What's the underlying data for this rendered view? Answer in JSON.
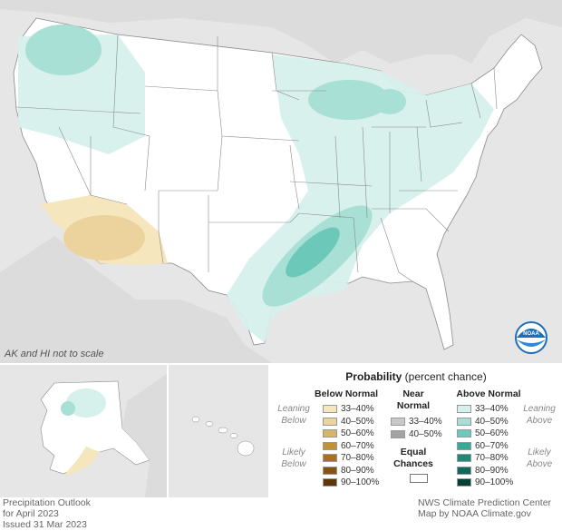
{
  "note": "AK and HI not to scale",
  "legend": {
    "title_bold": "Probability",
    "title_rest": " (percent chance)",
    "below_header": "Below Normal",
    "near_header_1": "Near",
    "near_header_2": "Normal",
    "above_header": "Above Normal",
    "leaning_1": "Leaning",
    "below_word": "Below",
    "likely_1": "Likely",
    "above_word": "Above",
    "equal_1": "Equal",
    "equal_2": "Chances",
    "below_rows": [
      {
        "label": "33–40%",
        "color": "#f6e6bd"
      },
      {
        "label": "40–50%",
        "color": "#ecd39e"
      },
      {
        "label": "50–60%",
        "color": "#d8b46c"
      },
      {
        "label": "60–70%",
        "color": "#c29037"
      },
      {
        "label": "70–80%",
        "color": "#a8701f"
      },
      {
        "label": "80–90%",
        "color": "#875414"
      },
      {
        "label": "90–100%",
        "color": "#5e3708"
      }
    ],
    "near_rows": [
      {
        "label": "33–40%",
        "color": "#c8c8c8"
      },
      {
        "label": "40–50%",
        "color": "#a3a3a3"
      }
    ],
    "above_rows": [
      {
        "label": "33–40%",
        "color": "#d6f0ec"
      },
      {
        "label": "40–50%",
        "color": "#a8e0d6"
      },
      {
        "label": "50–60%",
        "color": "#6cc8b8"
      },
      {
        "label": "60–70%",
        "color": "#3aa896"
      },
      {
        "label": "70–80%",
        "color": "#1f8a77"
      },
      {
        "label": "80–90%",
        "color": "#10695a"
      },
      {
        "label": "90–100%",
        "color": "#063f36"
      }
    ]
  },
  "footer": {
    "left_1": "Precipitation Outlook",
    "left_2": "for April 2023",
    "left_3": "Issued 31 Mar 2023",
    "right_1": "NWS Climate Prediction Center",
    "right_2": "Map by NOAA Climate.gov"
  },
  "logo_text": "NOAA",
  "colors": {
    "background_gray": "#e6e6e6",
    "land": "#ffffff",
    "state_lines": "#8a8a8a",
    "above_33_40": "#d6f0ec",
    "above_40_50": "#a8e0d6",
    "above_50_60": "#6cc8b8",
    "below_33_40": "#f6e6bd",
    "below_40_50": "#ecd39e",
    "noaa_blue": "#1d6fb8"
  }
}
